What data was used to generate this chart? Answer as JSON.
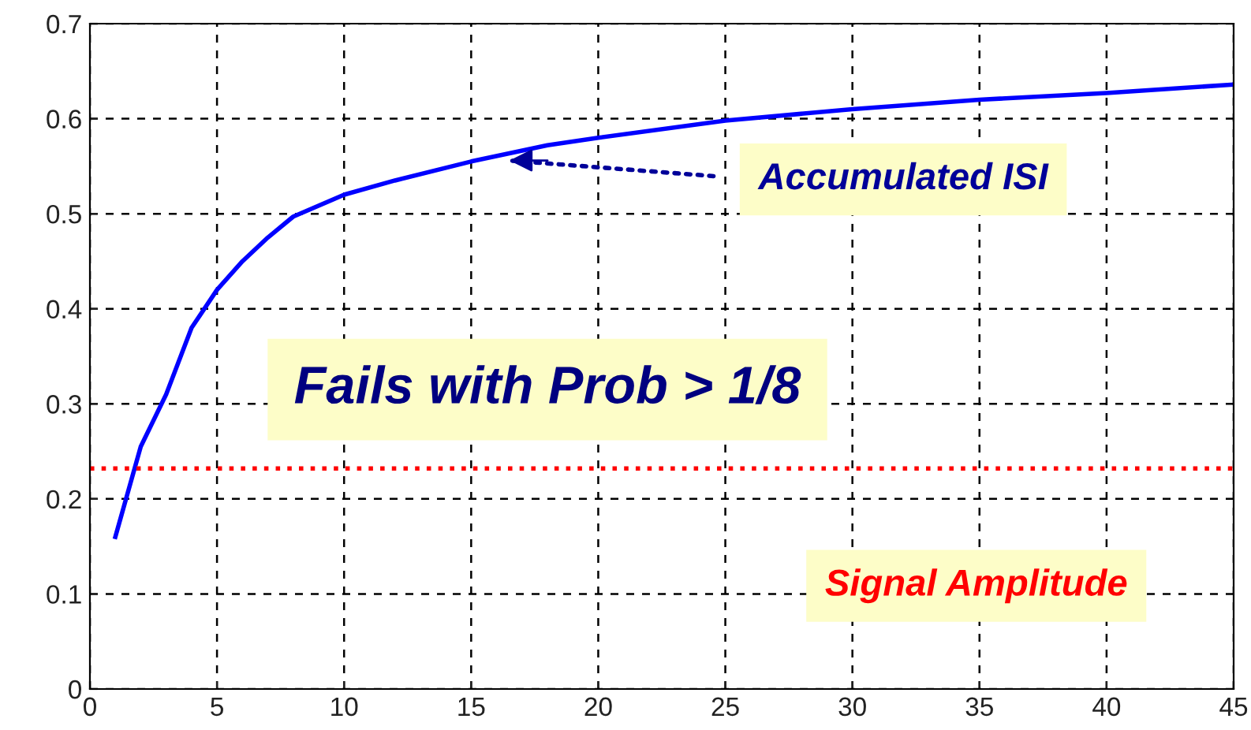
{
  "chart_data": {
    "type": "line",
    "xlim": [
      0,
      45
    ],
    "ylim": [
      0,
      0.7
    ],
    "xticks": [
      0,
      5,
      10,
      15,
      20,
      25,
      30,
      35,
      40,
      45
    ],
    "yticks": [
      0,
      0.1,
      0.2,
      0.3,
      0.4,
      0.5,
      0.6,
      0.7
    ],
    "grid": true,
    "line_style": "solid",
    "series": [
      {
        "color": "#0000ff",
        "x": [
          1,
          2,
          3,
          4,
          5,
          6,
          7,
          8,
          10,
          12,
          15,
          18,
          20,
          25,
          30,
          35,
          40,
          45
        ],
        "values": [
          0.16,
          0.255,
          0.31,
          0.38,
          0.42,
          0.45,
          0.475,
          0.497,
          0.52,
          0.535,
          0.555,
          0.572,
          0.58,
          0.598,
          0.61,
          0.62,
          0.627,
          0.636
        ]
      }
    ],
    "ref_lines": [
      {
        "axis": "y",
        "value": 0.232,
        "label": "Signal Amplitude",
        "color": "#ff0000",
        "line_style": "dotted"
      }
    ],
    "annotations": [
      {
        "text": "Accumulated ISI",
        "x": 16.5,
        "y": 0.556
      },
      "Fails with Prob > 1/8"
    ]
  }
}
